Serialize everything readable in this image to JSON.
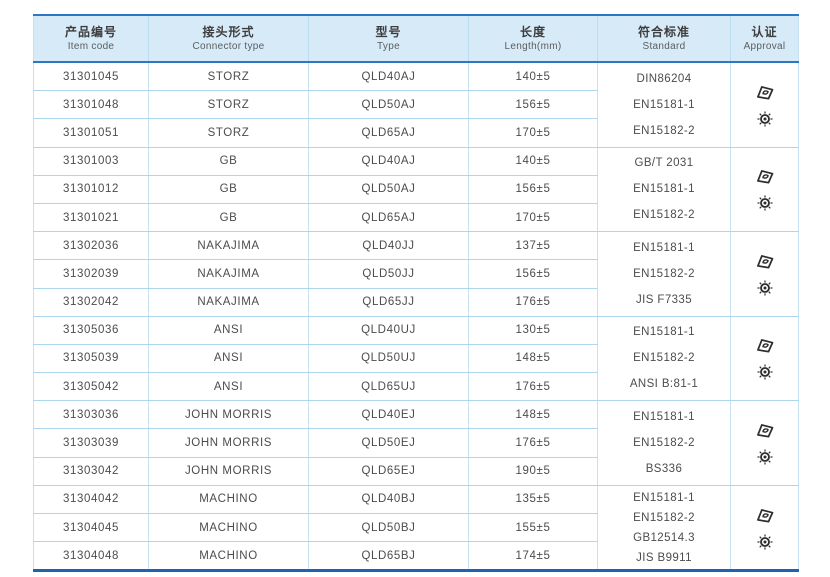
{
  "table": {
    "columns": [
      {
        "zh": "产品编号",
        "en": "Item code"
      },
      {
        "zh": "接头形式",
        "en": "Connector type"
      },
      {
        "zh": "型号",
        "en": "Type"
      },
      {
        "zh": "长度",
        "en": "Length(mm)"
      },
      {
        "zh": "符合标准",
        "en": "Standard"
      },
      {
        "zh": "认证",
        "en": "Approval"
      }
    ],
    "groups": [
      {
        "rows": [
          {
            "item_code": "31301045",
            "connector_type": "STORZ",
            "type": "QLD40AJ",
            "length": "140±5"
          },
          {
            "item_code": "31301048",
            "connector_type": "STORZ",
            "type": "QLD50AJ",
            "length": "156±5"
          },
          {
            "item_code": "31301051",
            "connector_type": "STORZ",
            "type": "QLD65AJ",
            "length": "170±5"
          }
        ],
        "standards": [
          "DIN86204",
          "EN15181-1",
          "EN15182-2"
        ],
        "approval_icons": [
          "certificate-stamp-icon",
          "rosette-seal-icon"
        ]
      },
      {
        "rows": [
          {
            "item_code": "31301003",
            "connector_type": "GB",
            "type": "QLD40AJ",
            "length": "140±5"
          },
          {
            "item_code": "31301012",
            "connector_type": "GB",
            "type": "QLD50AJ",
            "length": "156±5"
          },
          {
            "item_code": "31301021",
            "connector_type": "GB",
            "type": "QLD65AJ",
            "length": "170±5"
          }
        ],
        "standards": [
          "GB/T 2031",
          "EN15181-1",
          "EN15182-2"
        ],
        "approval_icons": [
          "certificate-stamp-icon",
          "rosette-seal-icon"
        ]
      },
      {
        "rows": [
          {
            "item_code": "31302036",
            "connector_type": "NAKAJIMA",
            "type": "QLD40JJ",
            "length": "137±5"
          },
          {
            "item_code": "31302039",
            "connector_type": "NAKAJIMA",
            "type": "QLD50JJ",
            "length": "156±5"
          },
          {
            "item_code": "31302042",
            "connector_type": "NAKAJIMA",
            "type": "QLD65JJ",
            "length": "176±5"
          }
        ],
        "standards": [
          "EN15181-1",
          "EN15182-2",
          "JIS F7335"
        ],
        "approval_icons": [
          "certificate-stamp-icon",
          "rosette-seal-icon"
        ]
      },
      {
        "rows": [
          {
            "item_code": "31305036",
            "connector_type": "ANSI",
            "type": "QLD40UJ",
            "length": "130±5"
          },
          {
            "item_code": "31305039",
            "connector_type": "ANSI",
            "type": "QLD50UJ",
            "length": "148±5"
          },
          {
            "item_code": "31305042",
            "connector_type": "ANSI",
            "type": "QLD65UJ",
            "length": "176±5"
          }
        ],
        "standards": [
          "EN15181-1",
          "EN15182-2",
          "ANSI B:81-1"
        ],
        "approval_icons": [
          "certificate-stamp-icon",
          "rosette-seal-icon"
        ]
      },
      {
        "rows": [
          {
            "item_code": "31303036",
            "connector_type": "JOHN MORRIS",
            "type": "QLD40EJ",
            "length": "148±5"
          },
          {
            "item_code": "31303039",
            "connector_type": "JOHN MORRIS",
            "type": "QLD50EJ",
            "length": "176±5"
          },
          {
            "item_code": "31303042",
            "connector_type": "JOHN MORRIS",
            "type": "QLD65EJ",
            "length": "190±5"
          }
        ],
        "standards": [
          "EN15181-1",
          "EN15182-2",
          "BS336"
        ],
        "approval_icons": [
          "certificate-stamp-icon",
          "rosette-seal-icon"
        ]
      },
      {
        "rows": [
          {
            "item_code": "31304042",
            "connector_type": "MACHINO",
            "type": "QLD40BJ",
            "length": "135±5"
          },
          {
            "item_code": "31304045",
            "connector_type": "MACHINO",
            "type": "QLD50BJ",
            "length": "155±5"
          },
          {
            "item_code": "31304048",
            "connector_type": "MACHINO",
            "type": "QLD65BJ",
            "length": "174±5"
          }
        ],
        "standards": [
          "EN15181-1",
          "EN15182-2",
          "GB12514.3",
          "JIS B9911"
        ],
        "approval_icons": [
          "certificate-stamp-icon",
          "rosette-seal-icon"
        ]
      }
    ],
    "colors": {
      "header_bg": "#d7eaf8",
      "header_border": "#2d76c1",
      "row_line": "#aed7ee",
      "column_line": "#c6e1f2",
      "bottom_border": "#1d63ad",
      "text": "#4c4c4c",
      "icon": "#2e2e2e"
    }
  }
}
